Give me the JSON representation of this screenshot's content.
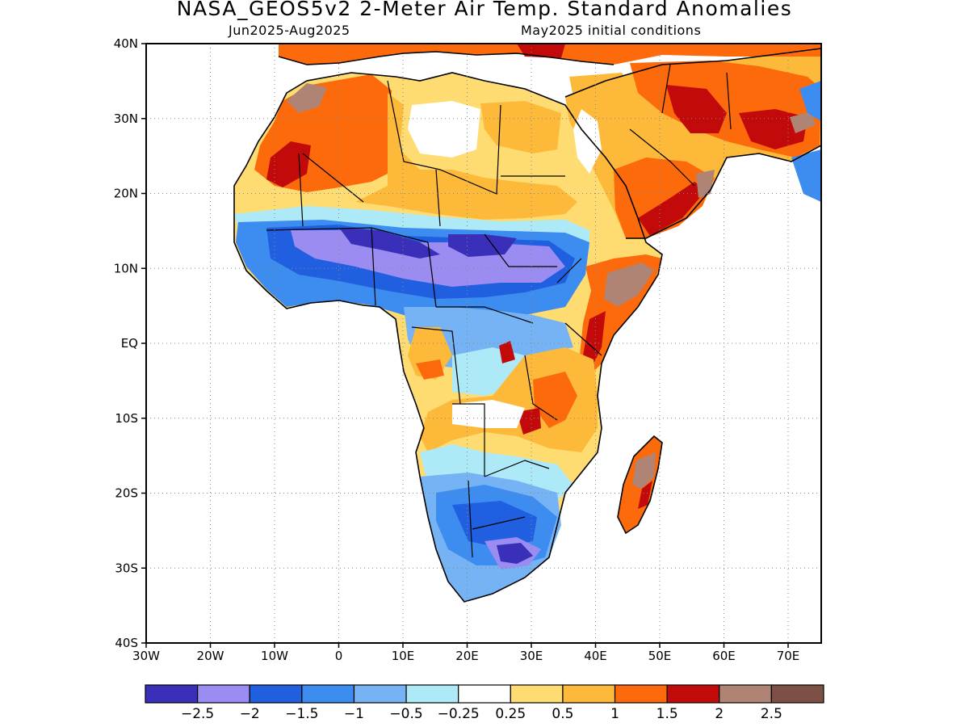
{
  "header": {
    "title": "NASA_GEOS5v2 2-Meter Air Temp. Standard Anomalies",
    "period": "Jun2025-Aug2025",
    "init": "May2025 initial conditions"
  },
  "map": {
    "lat_labels": [
      "40N",
      "30N",
      "20N",
      "10N",
      "EQ",
      "10S",
      "20S",
      "30S",
      "40S"
    ],
    "lon_labels": [
      "30W",
      "20W",
      "10W",
      "0",
      "10E",
      "20E",
      "30E",
      "40E",
      "50E",
      "60E",
      "70E"
    ],
    "grid": "dotted"
  },
  "colorbar": {
    "labels": [
      "-2.5",
      "-2",
      "-1.5",
      "-1",
      "-0.5",
      "-0.25",
      "0.25",
      "0.5",
      "1",
      "1.5",
      "2",
      "2.5"
    ],
    "colors": [
      "#3a2fb8",
      "#9b8cf2",
      "#1f5fe0",
      "#3d8cf0",
      "#75b3f5",
      "#aee9f7",
      "#ffffff",
      "#fedc72",
      "#fdb93a",
      "#fc6a0b",
      "#c30a0a",
      "#b08474",
      "#7c5044"
    ]
  }
}
